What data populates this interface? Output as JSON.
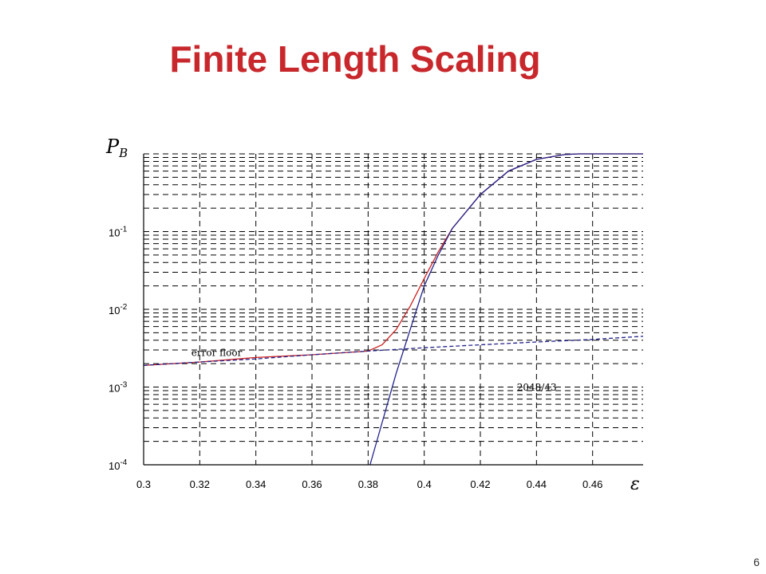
{
  "slide": {
    "title": "Finite Length Scaling",
    "page_number": "6",
    "title_color": "#c8282c"
  },
  "chart_data": {
    "type": "line",
    "title": "",
    "xlabel": "ε",
    "ylabel": "P_B",
    "x_scale": "linear",
    "y_scale": "log",
    "xlim": [
      0.3,
      0.478
    ],
    "ylim": [
      0.0001,
      1
    ],
    "x_ticks": [
      0.3,
      0.32,
      0.34,
      0.36,
      0.38,
      0.4,
      0.42,
      0.44,
      0.46
    ],
    "x_tick_labels": [
      "0.3",
      "0.32",
      "0.34",
      "0.36",
      "0.38",
      "0.4",
      "0.42",
      "0.44",
      "0.46"
    ],
    "y_ticks": [
      0.0001,
      0.001,
      0.01,
      0.1
    ],
    "y_tick_labels": [
      {
        "base": "10",
        "exp": "-4"
      },
      {
        "base": "10",
        "exp": "-3"
      },
      {
        "base": "10",
        "exp": "-2"
      },
      {
        "base": "10",
        "exp": "-1"
      }
    ],
    "grid": true,
    "grid_style": "dashed",
    "annotations": {
      "error_floor": {
        "text": "error floor",
        "x": 0.317,
        "y": 0.0025
      },
      "code": {
        "text": "2048/43",
        "x": 0.433,
        "y": 0.0009
      }
    },
    "series": [
      {
        "color": "#cc2222",
        "x": [
          0.3,
          0.32,
          0.34,
          0.36,
          0.38,
          0.385,
          0.39,
          0.395,
          0.4,
          0.405,
          0.41,
          0.42,
          0.43,
          0.44,
          0.45,
          0.455,
          0.478
        ],
        "y": [
          0.0019,
          0.0021,
          0.0024,
          0.0026,
          0.0029,
          0.0035,
          0.0055,
          0.011,
          0.025,
          0.055,
          0.11,
          0.3,
          0.6,
          0.85,
          0.98,
          1.0,
          1.0
        ]
      },
      {
        "color": "#22228c",
        "dash": "dashed",
        "x": [
          0.3,
          0.32,
          0.34,
          0.36,
          0.38,
          0.4,
          0.42,
          0.44,
          0.46,
          0.478
        ],
        "y": [
          0.0019,
          0.0021,
          0.0023,
          0.0026,
          0.0029,
          0.0032,
          0.0035,
          0.0038,
          0.0041,
          0.0045
        ]
      },
      {
        "color": "#22228c",
        "x": [
          0.3807,
          0.385,
          0.39,
          0.395,
          0.4,
          0.405,
          0.41,
          0.42,
          0.43,
          0.44,
          0.45,
          0.455,
          0.478
        ],
        "y": [
          0.0001,
          0.00035,
          0.0015,
          0.0055,
          0.02,
          0.05,
          0.11,
          0.3,
          0.6,
          0.85,
          0.98,
          1.0,
          1.0
        ]
      }
    ]
  }
}
